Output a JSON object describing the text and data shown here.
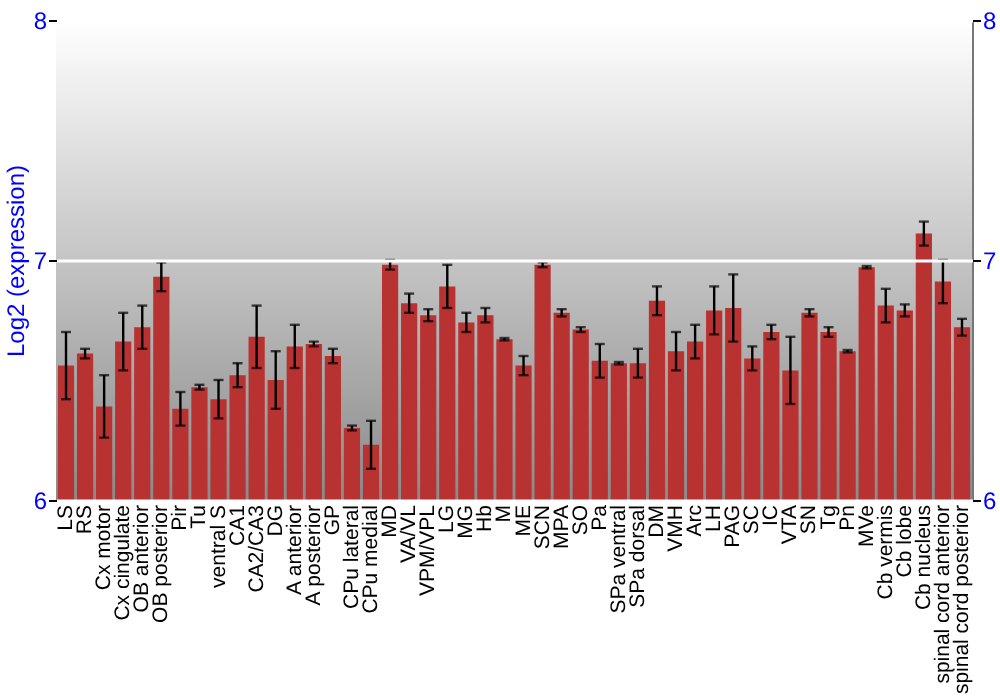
{
  "chart_data": {
    "type": "bar",
    "ylabel": "Log2 (expression)",
    "categories": [
      "LS",
      "RS",
      "Cx motor",
      "Cx cingulate",
      "OB anterior",
      "OB posterior",
      "Pir",
      "Tu",
      "ventral S",
      "CA1",
      "CA2/CA3",
      "DG",
      "A anterior",
      "A posterior",
      "GP",
      "CPu lateral",
      "CPu medial",
      "MD",
      "VA/VL",
      "VPM/VPL",
      "LG",
      "MG",
      "Hb",
      "M",
      "ME",
      "SCN",
      "MPA",
      "SO",
      "Pa",
      "SPa ventral",
      "SPa dorsal",
      "DM",
      "VMH",
      "Arc",
      "LH",
      "PAG",
      "SC",
      "IC",
      "VTA",
      "SN",
      "Tg",
      "Pn",
      "MVe",
      "Cb vermis",
      "Cb lobe",
      "Cb nucleus",
      "spinal cord anterior",
      "spinal cord posterior"
    ],
    "values": [
      6.56,
      6.61,
      6.39,
      6.66,
      6.72,
      6.93,
      6.38,
      6.47,
      6.42,
      6.52,
      6.68,
      6.5,
      6.64,
      6.65,
      6.6,
      6.3,
      6.23,
      6.98,
      6.82,
      6.77,
      6.89,
      6.74,
      6.77,
      6.67,
      6.56,
      6.98,
      6.78,
      6.71,
      6.58,
      6.57,
      6.57,
      6.83,
      6.62,
      6.66,
      6.79,
      6.8,
      6.59,
      6.7,
      6.54,
      6.78,
      6.7,
      6.62,
      6.97,
      6.81,
      6.79,
      7.11,
      6.91,
      6.72
    ],
    "errors": [
      0.14,
      0.02,
      0.13,
      0.12,
      0.09,
      0.06,
      0.07,
      0.01,
      0.08,
      0.05,
      0.13,
      0.12,
      0.09,
      0.01,
      0.03,
      0.01,
      0.1,
      0.02,
      0.04,
      0.025,
      0.09,
      0.04,
      0.03,
      0.005,
      0.04,
      0.01,
      0.015,
      0.01,
      0.07,
      0.005,
      0.06,
      0.06,
      0.08,
      0.07,
      0.1,
      0.14,
      0.05,
      0.03,
      0.14,
      0.015,
      0.02,
      0.005,
      0.005,
      0.07,
      0.025,
      0.05,
      0.09,
      0.035
    ],
    "color": "#b83232",
    "ylim": [
      6,
      8
    ],
    "yticks": [
      6,
      7,
      8
    ],
    "y2lim": [
      6,
      8
    ],
    "y2ticks": [
      6,
      7,
      8
    ],
    "grid": "y"
  }
}
